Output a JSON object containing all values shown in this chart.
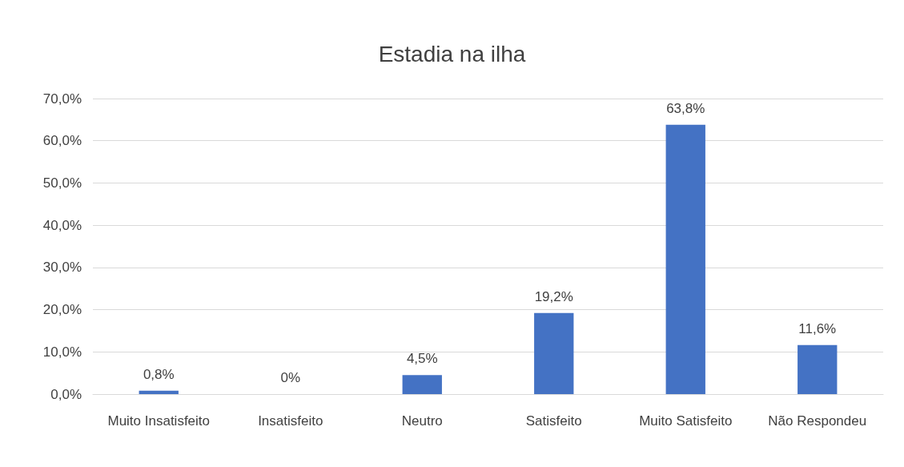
{
  "chart_data": {
    "type": "bar",
    "title": "Estadia na ilha",
    "categories": [
      "Muito Insatisfeito",
      "Insatisfeito",
      "Neutro",
      "Satisfeito",
      "Muito Satisfeito",
      "Não Respondeu"
    ],
    "values": [
      0.8,
      0,
      4.5,
      19.2,
      63.8,
      11.6
    ],
    "value_labels": [
      "0,8%",
      "0%",
      "4,5%",
      "19,2%",
      "63,8%",
      "11,6%"
    ],
    "color": "#4472c4",
    "ylim": [
      0,
      70
    ],
    "yticks": [
      {
        "value": 0,
        "label": "0,0%"
      },
      {
        "value": 10,
        "label": "10,0%"
      },
      {
        "value": 20,
        "label": "20,0%"
      },
      {
        "value": 30,
        "label": "30,0%"
      },
      {
        "value": 40,
        "label": "40,0%"
      },
      {
        "value": 50,
        "label": "50,0%"
      },
      {
        "value": 60,
        "label": "60,0%"
      },
      {
        "value": 70,
        "label": "70,0%"
      }
    ],
    "grid": "y"
  }
}
